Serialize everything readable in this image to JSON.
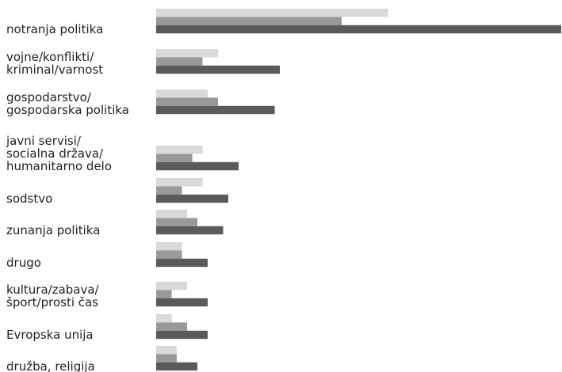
{
  "chart_data": {
    "type": "hbar",
    "categories": [
      "notranja politika",
      "vojne/konflikti/\nkriminal/varnost",
      "gospodarstvo/\ngospodarska politika",
      "javni servisi/\nsocialna država/\nhumanitarno delo",
      "sodstvo",
      "zunanja politika",
      "drugo",
      "kultura/zabava/\nšport/prosti čas",
      "Evropska unija",
      "družba, religija"
    ],
    "series": [
      {
        "color": "#d9d9d9",
        "values": [
          22.5,
          6,
          5,
          4.5,
          4.5,
          3,
          2.5,
          3,
          1.5,
          2
        ]
      },
      {
        "color": "#999999",
        "values": [
          18,
          4.5,
          6,
          3.5,
          2.5,
          4,
          2.5,
          1.5,
          3,
          2
        ]
      },
      {
        "color": "#5a5a5a",
        "values": [
          39.3,
          12,
          11.5,
          8,
          7,
          6.5,
          5,
          5,
          5,
          4
        ]
      }
    ],
    "xlim": [
      0,
      39.3
    ]
  }
}
